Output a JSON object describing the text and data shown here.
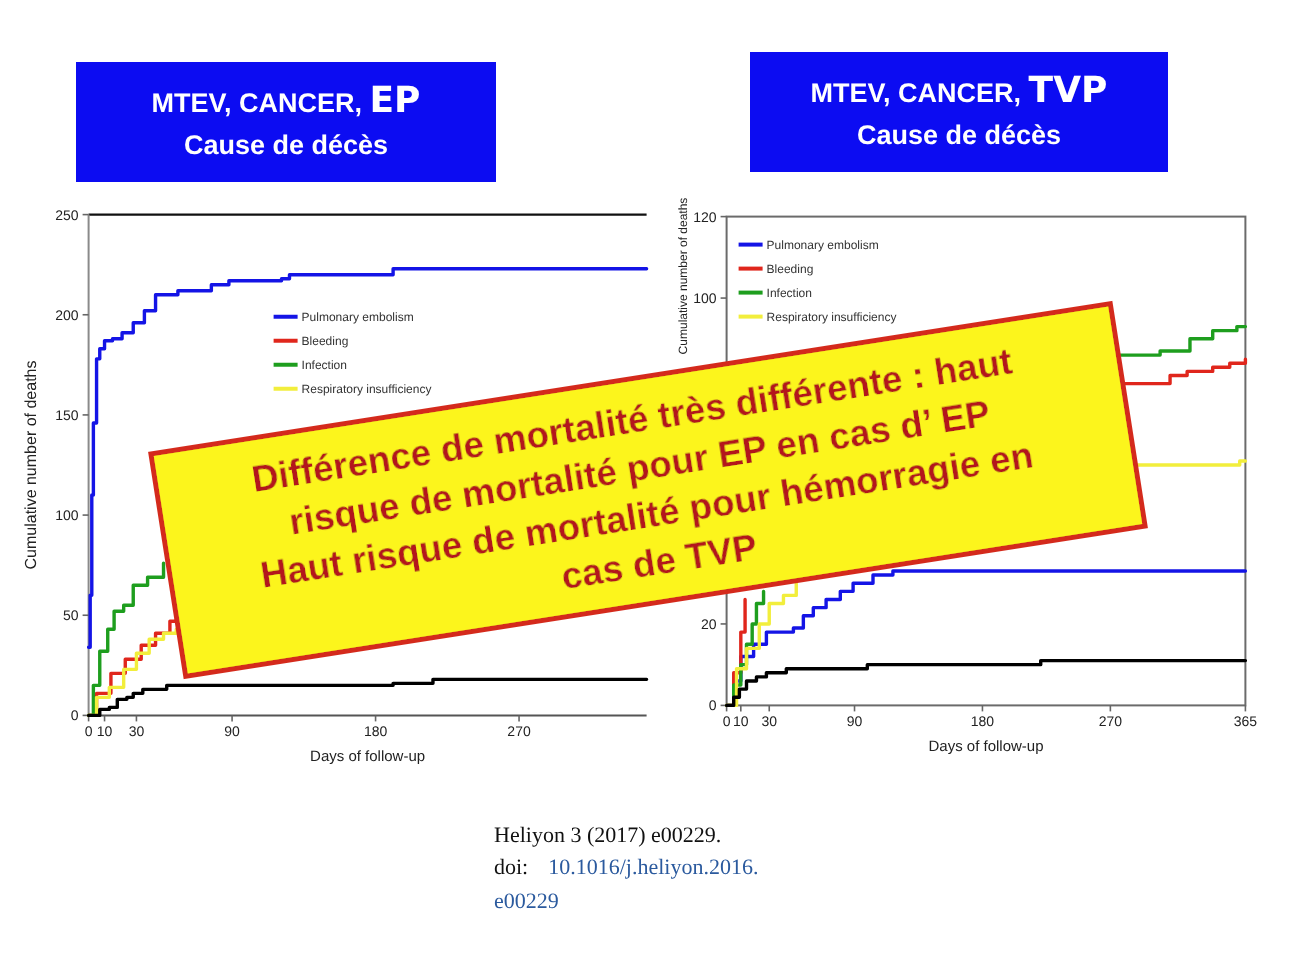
{
  "chart_data": [
    {
      "type": "step",
      "title": "MTEV, CANCER, EP",
      "subtitle": "Cause de décès",
      "xlabel": "Days of follow-up",
      "ylabel": "Cumulative number of deaths",
      "xlim": [
        0,
        350
      ],
      "xticks": [
        0,
        10,
        30,
        90,
        180,
        270
      ],
      "ylim": [
        0,
        250
      ],
      "yticks": [
        0,
        50,
        100,
        150,
        200,
        250
      ],
      "legend": "top",
      "series": [
        {
          "name": "Pulmonary embolism",
          "color": "#1414e6",
          "x": [
            0,
            1,
            2,
            3,
            5,
            7,
            10,
            15,
            21,
            28,
            35,
            42,
            56,
            77,
            88,
            121,
            126,
            191,
            350
          ],
          "values": [
            34,
            60,
            110,
            146,
            178,
            183,
            187,
            188,
            191,
            196,
            202,
            210,
            212,
            215,
            217,
            218,
            220,
            223,
            223
          ]
        },
        {
          "name": "Bleeding",
          "color": "#e0261c",
          "x": [
            0,
            5,
            14,
            23,
            33,
            42,
            51,
            55
          ],
          "values": [
            0,
            11,
            21,
            28,
            35,
            41,
            47,
            48
          ]
        },
        {
          "name": "Infection",
          "color": "#1e9e1e",
          "x": [
            0,
            3,
            7,
            12,
            16,
            22,
            28,
            37,
            47
          ],
          "values": [
            0,
            15,
            32,
            43,
            52,
            55,
            65,
            69,
            76
          ]
        },
        {
          "name": "Respiratory insufficiency",
          "color": "#f2ee3c",
          "x": [
            0,
            5,
            13,
            22,
            30,
            38,
            47,
            55
          ],
          "values": [
            0,
            9,
            14,
            23,
            31,
            38,
            41,
            43
          ]
        },
        {
          "color": "#000000",
          "x": [
            0,
            7,
            13,
            18,
            24,
            28,
            34,
            45,
            49,
            120,
            191,
            216,
            350
          ],
          "values": [
            0,
            3,
            4,
            8,
            9,
            11,
            13,
            13,
            15,
            15,
            16,
            18,
            18
          ]
        }
      ],
      "annotations": [
        "Heliyon 3 (2017) e00229.",
        "doi: 10.1016/j.heliyon.2016.\ne00229"
      ]
    },
    {
      "type": "step",
      "title": "MTEV, CANCER, TVP",
      "subtitle": "Cause de décès",
      "xlabel": "Days of follow-up",
      "ylabel": "Cumulative number of deaths",
      "xlim": [
        0,
        365
      ],
      "xticks": [
        0,
        10,
        30,
        90,
        180,
        270,
        365
      ],
      "ylim": [
        0,
        120
      ],
      "yticks": [
        0,
        20,
        100,
        120
      ],
      "legend": "top left",
      "series": [
        {
          "name": "Pulmonary embolism",
          "color": "#1414e6",
          "x": [
            0,
            5,
            10,
            14,
            19,
            28,
            47,
            54,
            61,
            70,
            80,
            89,
            103,
            117,
            365
          ],
          "values": [
            0,
            6,
            12,
            12,
            15,
            18,
            19,
            22,
            24,
            26,
            28,
            30,
            32,
            33,
            33
          ]
        },
        {
          "name": "Bleeding",
          "color": "#e0261c",
          "x": [
            0,
            5,
            10,
            13,
            14,
            280,
            312,
            324,
            342,
            354,
            365
          ],
          "values": [
            0,
            8,
            18,
            26,
            null,
            79,
            81,
            82,
            83,
            84,
            85
          ]
        },
        {
          "name": "Infection",
          "color": "#1e9e1e",
          "x": [
            0,
            5,
            10,
            14,
            18,
            21,
            26,
            27,
            277,
            305,
            326,
            342,
            359,
            365
          ],
          "values": [
            0,
            5,
            10,
            15,
            20,
            25,
            28,
            null,
            86,
            87,
            90,
            92,
            93,
            93
          ]
        },
        {
          "name": "Respiratory insufficiency",
          "color": "#f2ee3c",
          "x": [
            0,
            7,
            14,
            23,
            30,
            40,
            49,
            50,
            288,
            361,
            365
          ],
          "values": [
            0,
            9,
            14,
            20,
            25,
            27,
            30,
            null,
            59,
            60,
            60
          ]
        },
        {
          "color": "#000000",
          "x": [
            0,
            5,
            9,
            14,
            21,
            28,
            42,
            99,
            221,
            365
          ],
          "values": [
            0,
            2,
            4,
            6,
            7,
            8,
            9,
            10,
            11,
            11
          ]
        }
      ],
      "annotations": [
        "Différence de mortalité très différente : haut\nrisque de mortalité pour EP en cas d’ EP\nHaut risque de mortalité pour hémorragie en\ncas de TVP"
      ]
    }
  ]
}
